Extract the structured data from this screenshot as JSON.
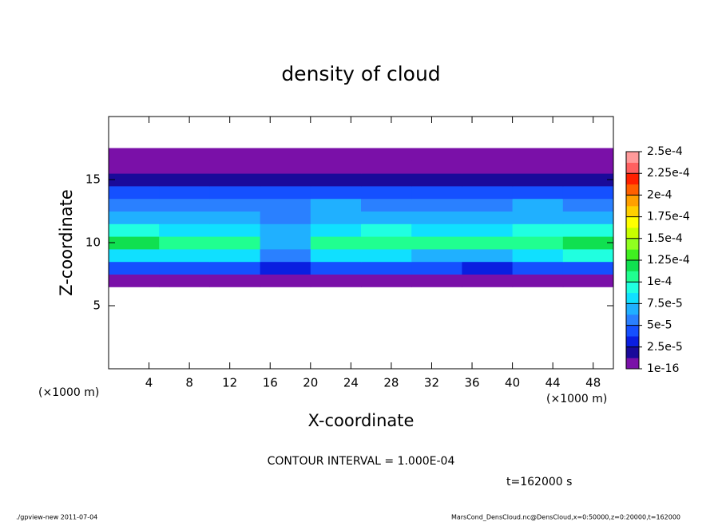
{
  "chart_data": {
    "type": "heatmap",
    "title": "density of cloud",
    "x_label": "X-coordinate",
    "y_label": "Z-coordinate",
    "x_unit": "(×1000 m)",
    "y_unit": "(×1000 m)",
    "xlim": [
      0,
      50
    ],
    "xticks": [
      4,
      8,
      12,
      16,
      20,
      24,
      28,
      32,
      36,
      40,
      44,
      48
    ],
    "ylim": [
      0,
      20
    ],
    "yticks": [
      5,
      10,
      15
    ],
    "x": [
      2.5,
      7.5,
      12.5,
      17.5,
      22.5,
      27.5,
      32.5,
      37.5,
      42.5,
      47.5
    ],
    "z": [
      7,
      8,
      9,
      10,
      11,
      12,
      13,
      14,
      15,
      16,
      17
    ],
    "values": [
      [
        5e-06,
        5e-06,
        5e-06,
        5e-06,
        5e-06,
        5e-06,
        5e-06,
        5e-06,
        5e-06,
        5e-06
      ],
      [
        4e-05,
        4.5e-05,
        4e-05,
        3e-05,
        4e-05,
        4e-05,
        4e-05,
        3.5e-05,
        4e-05,
        4e-05
      ],
      [
        8e-05,
        8.5e-05,
        8e-05,
        6e-05,
        8e-05,
        8e-05,
        7.5e-05,
        7.5e-05,
        8e-05,
        9e-05
      ],
      [
        0.00012,
        0.000105,
        0.000105,
        7.5e-05,
        0.000102,
        0.000105,
        0.000102,
        0.000102,
        0.000105,
        0.000125
      ],
      [
        9e-05,
        8.5e-05,
        8.5e-05,
        7e-05,
        8.5e-05,
        9e-05,
        8.5e-05,
        8.5e-05,
        9e-05,
        0.0001
      ],
      [
        7e-05,
        7.5e-05,
        7e-05,
        6e-05,
        7e-05,
        7.5e-05,
        7e-05,
        7e-05,
        7.5e-05,
        7.5e-05
      ],
      [
        5.5e-05,
        6e-05,
        5.5e-05,
        6e-05,
        6.5e-05,
        6e-05,
        5.5e-05,
        6e-05,
        6.5e-05,
        6e-05
      ],
      [
        4e-05,
        4.5e-05,
        4e-05,
        4e-05,
        4.5e-05,
        4e-05,
        4e-05,
        4.5e-05,
        5e-05,
        4e-05
      ],
      [
        2e-05,
        2e-05,
        2e-05,
        2e-05,
        2e-05,
        2e-05,
        2e-05,
        2e-05,
        2e-05,
        2e-05
      ],
      [
        5e-06,
        5e-06,
        5e-06,
        5e-06,
        5e-06,
        5e-06,
        5e-06,
        5e-06,
        5e-06,
        5e-06
      ],
      [
        1e-06,
        1e-06,
        1e-06,
        1e-06,
        1e-06,
        1e-06,
        1e-06,
        1e-06,
        1e-06,
        1e-06
      ]
    ],
    "colorbar_ticks": [
      {
        "value": 1e-16,
        "label": "1e-16"
      },
      {
        "value": 2.5e-05,
        "label": "2.5e-5"
      },
      {
        "value": 5e-05,
        "label": "5e-5"
      },
      {
        "value": 7.5e-05,
        "label": "7.5e-5"
      },
      {
        "value": 0.0001,
        "label": "1e-4"
      },
      {
        "value": 0.000125,
        "label": "1.25e-4"
      },
      {
        "value": 0.00015,
        "label": "1.5e-4"
      },
      {
        "value": 0.000175,
        "label": "1.75e-4"
      },
      {
        "value": 0.0002,
        "label": "2e-4"
      },
      {
        "value": 0.000225,
        "label": "2.25e-4"
      },
      {
        "value": 0.00025,
        "label": "2.5e-4"
      }
    ],
    "colors": [
      "#7a10a8",
      "#1a0a9a",
      "#0a1ee0",
      "#1550ff",
      "#2a80ff",
      "#20b0ff",
      "#10e0ff",
      "#20ffe0",
      "#20ff90",
      "#10e050",
      "#40f020",
      "#90ff20",
      "#c8ff00",
      "#ffff00",
      "#ffd000",
      "#ffa000",
      "#ff6000",
      "#ff2000",
      "#ff6060",
      "#ff9a9a"
    ],
    "contour_note": "CONTOUR INTERVAL = 1.000E-04",
    "time_label": "t=162000 s",
    "footer_left": "./gpview-new  2011-07-04",
    "footer_right": "MarsCond_DensCloud.nc@DensCloud,x=0:50000,z=0:20000,t=162000"
  }
}
